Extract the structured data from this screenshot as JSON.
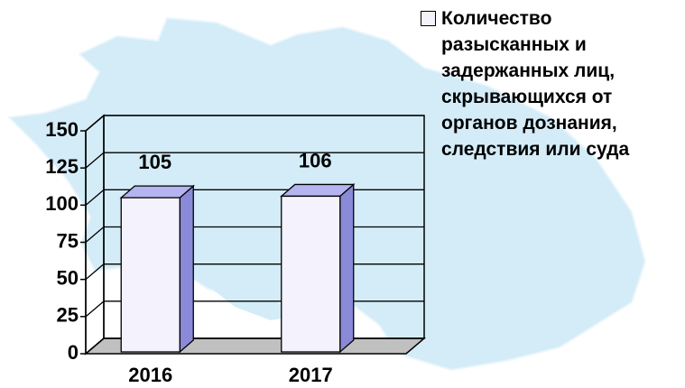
{
  "chart_data": {
    "type": "bar3d",
    "categories": [
      "2016",
      "2017"
    ],
    "series": [
      {
        "name": "Количество разысканных и задержанных лиц, скрывающихся от органов дознания, следствия или суда",
        "color": "#f4f2fc",
        "values": [
          105,
          106
        ]
      }
    ],
    "ylim": [
      0,
      150
    ],
    "yticks": [
      0,
      25,
      50,
      75,
      100,
      125,
      150
    ],
    "grid": true,
    "legend": "top-right"
  }
}
